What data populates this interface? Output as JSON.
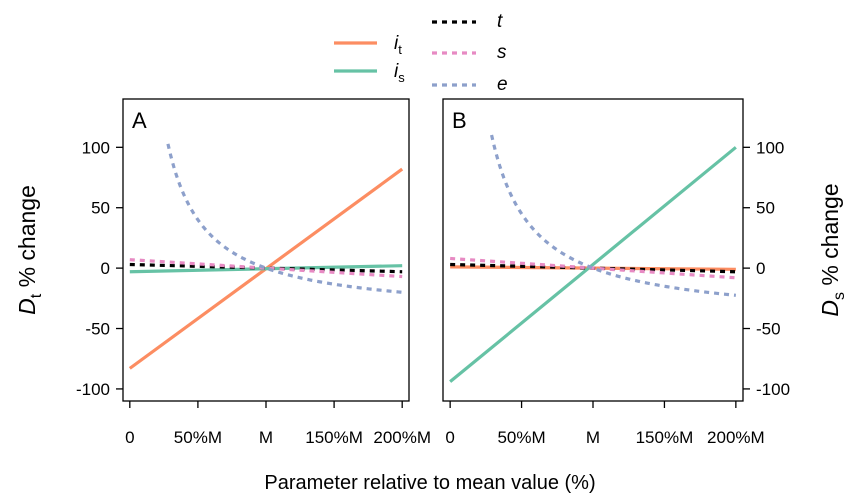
{
  "chart_data": [
    {
      "type": "line",
      "panel_label": "A",
      "ylabel_main": "D",
      "ylabel_sub": "t",
      "ylabel_rest": " % change",
      "ylim": [
        -110,
        140
      ],
      "yticks": [
        100,
        50,
        0,
        -50,
        -100
      ],
      "ytick_labels": [
        "100",
        "50",
        "0",
        "-50",
        "-100"
      ],
      "xlim": [
        -0.05,
        2.05
      ],
      "xticks": [
        0,
        0.5,
        1,
        1.5,
        2
      ],
      "xtick_labels": [
        "0",
        "50%M",
        "M",
        "150%M",
        "200%M"
      ],
      "series": [
        {
          "name": "i_t",
          "color": "#fc8d62",
          "dash": false,
          "x": [
            0,
            2
          ],
          "y": [
            -83,
            82
          ]
        },
        {
          "name": "i_s",
          "color": "#66c2a5",
          "dash": false,
          "x": [
            0,
            2
          ],
          "y": [
            -3,
            2
          ]
        },
        {
          "name": "t",
          "color": "#000000",
          "dash": true,
          "x": [
            0,
            2
          ],
          "y": [
            3,
            -3
          ]
        },
        {
          "name": "s",
          "color": "#e78ac3",
          "dash": true,
          "x": [
            0,
            2
          ],
          "y": [
            7,
            -7
          ]
        },
        {
          "name": "e",
          "color": "#8da0cb",
          "dash": true,
          "type": "reciprocal",
          "a": 40,
          "b": -40,
          "x_start": 0.28,
          "x_end": 2
        }
      ]
    },
    {
      "type": "line",
      "panel_label": "B",
      "ylabel_main": "D",
      "ylabel_sub": "s",
      "ylabel_rest": " % change",
      "ylim": [
        -110,
        140
      ],
      "yticks": [
        100,
        50,
        0,
        -50,
        -100
      ],
      "ytick_labels": [
        "100",
        "50",
        "0",
        "-50",
        "-100"
      ],
      "xlim": [
        -0.05,
        2.05
      ],
      "xticks": [
        0,
        0.5,
        1,
        1.5,
        2
      ],
      "xtick_labels": [
        "0",
        "50%M",
        "M",
        "150%M",
        "200%M"
      ],
      "series": [
        {
          "name": "i_t",
          "color": "#fc8d62",
          "dash": false,
          "x": [
            0,
            2
          ],
          "y": [
            1,
            -1
          ]
        },
        {
          "name": "i_s",
          "color": "#66c2a5",
          "dash": false,
          "x": [
            0,
            2
          ],
          "y": [
            -94,
            100
          ]
        },
        {
          "name": "t",
          "color": "#000000",
          "dash": true,
          "x": [
            0,
            2
          ],
          "y": [
            3,
            -3
          ]
        },
        {
          "name": "s",
          "color": "#e78ac3",
          "dash": true,
          "x": [
            0,
            2
          ],
          "y": [
            8,
            -8
          ]
        },
        {
          "name": "e",
          "color": "#8da0cb",
          "dash": true,
          "type": "reciprocal",
          "a": 45,
          "b": -45,
          "x_start": 0.29,
          "x_end": 2
        }
      ]
    }
  ],
  "xlabel": "Parameter relative to mean value (%)",
  "legend": {
    "items": [
      {
        "main": "i",
        "sub": "t",
        "color": "#fc8d62",
        "dash": false
      },
      {
        "main": "i",
        "sub": "s",
        "color": "#66c2a5",
        "dash": false
      },
      {
        "main": "t",
        "sub": "",
        "color": "#000000",
        "dash": true
      },
      {
        "main": "s",
        "sub": "",
        "color": "#e78ac3",
        "dash": true
      },
      {
        "main": "e",
        "sub": "",
        "color": "#8da0cb",
        "dash": true
      }
    ]
  }
}
